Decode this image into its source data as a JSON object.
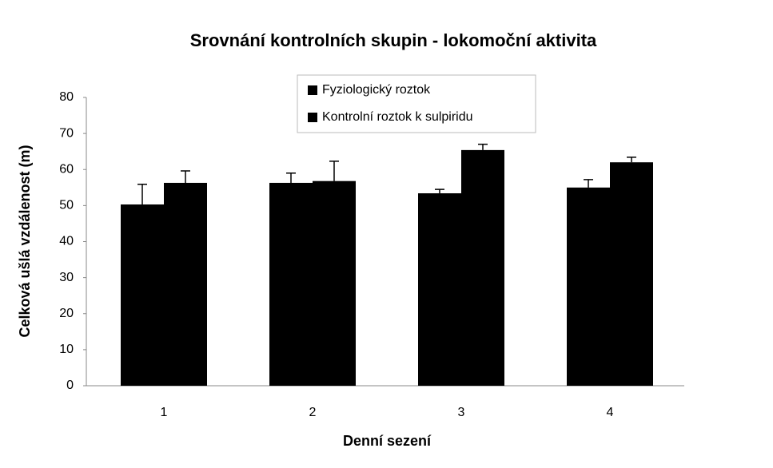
{
  "chart_data": {
    "type": "bar",
    "title": "Srovnání kontrolních skupin - lokomoční aktivita",
    "x_label": "Denní sezení",
    "y_label": "Celková ušlá vzdálenost (m)",
    "categories": [
      "1",
      "2",
      "3",
      "4"
    ],
    "series": [
      {
        "name": "Fyziologický roztok",
        "color": "#000000",
        "values": [
          50.3,
          56.3,
          53.4,
          55
        ],
        "errors": [
          5.6,
          2.7,
          1.1,
          2.2
        ]
      },
      {
        "name": "Kontrolní roztok k sulpiridu",
        "color": "#000000",
        "values": [
          56.3,
          56.8,
          65.4,
          62
        ],
        "errors": [
          3.3,
          5.5,
          1.6,
          1.4
        ]
      }
    ],
    "ylim": [
      0,
      80
    ],
    "yticks": [
      0,
      10,
      20,
      30,
      40,
      50,
      60,
      70,
      80
    ],
    "grid": false
  }
}
